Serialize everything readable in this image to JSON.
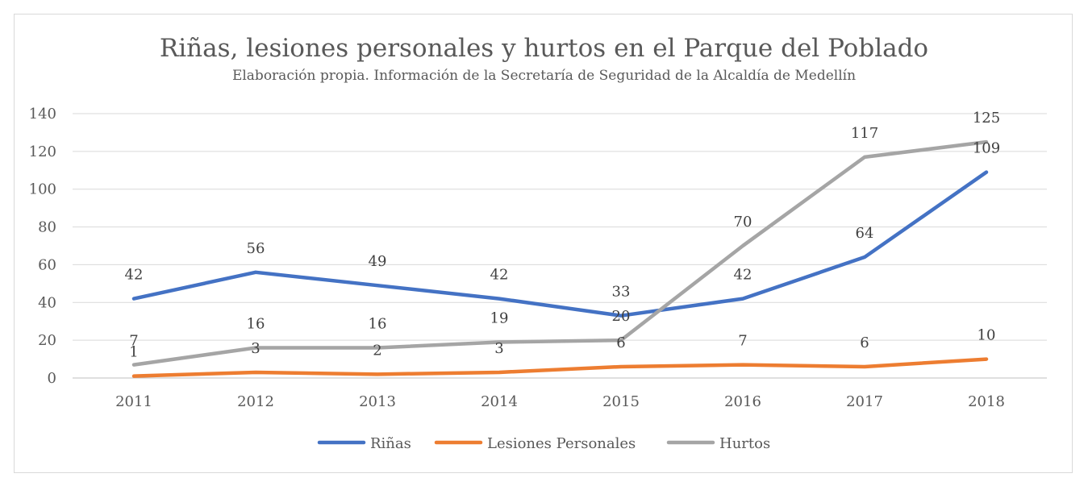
{
  "chart_data": {
    "type": "line",
    "title": "Riñas, lesiones personales y hurtos en el Parque del Poblado",
    "subtitle": "Elaboración propia. Información de la Secretaría de Seguridad de la Alcaldía de Medellín",
    "categories": [
      "2011",
      "2012",
      "2013",
      "2014",
      "2015",
      "2016",
      "2017",
      "2018"
    ],
    "ylim": [
      0,
      140
    ],
    "yticks": [
      0,
      20,
      40,
      60,
      80,
      100,
      120,
      140
    ],
    "grid": true,
    "legend_position": "bottom",
    "xlabel": "",
    "ylabel": "",
    "series": [
      {
        "name": "Riñas",
        "color": "#4472c4",
        "values": [
          42,
          56,
          49,
          42,
          33,
          42,
          64,
          109
        ]
      },
      {
        "name": "Lesiones Personales",
        "color": "#ed7d31",
        "values": [
          1,
          3,
          2,
          3,
          6,
          7,
          6,
          10
        ]
      },
      {
        "name": "Hurtos",
        "color": "#a5a5a5",
        "values": [
          7,
          16,
          16,
          19,
          20,
          70,
          117,
          125
        ]
      }
    ]
  }
}
